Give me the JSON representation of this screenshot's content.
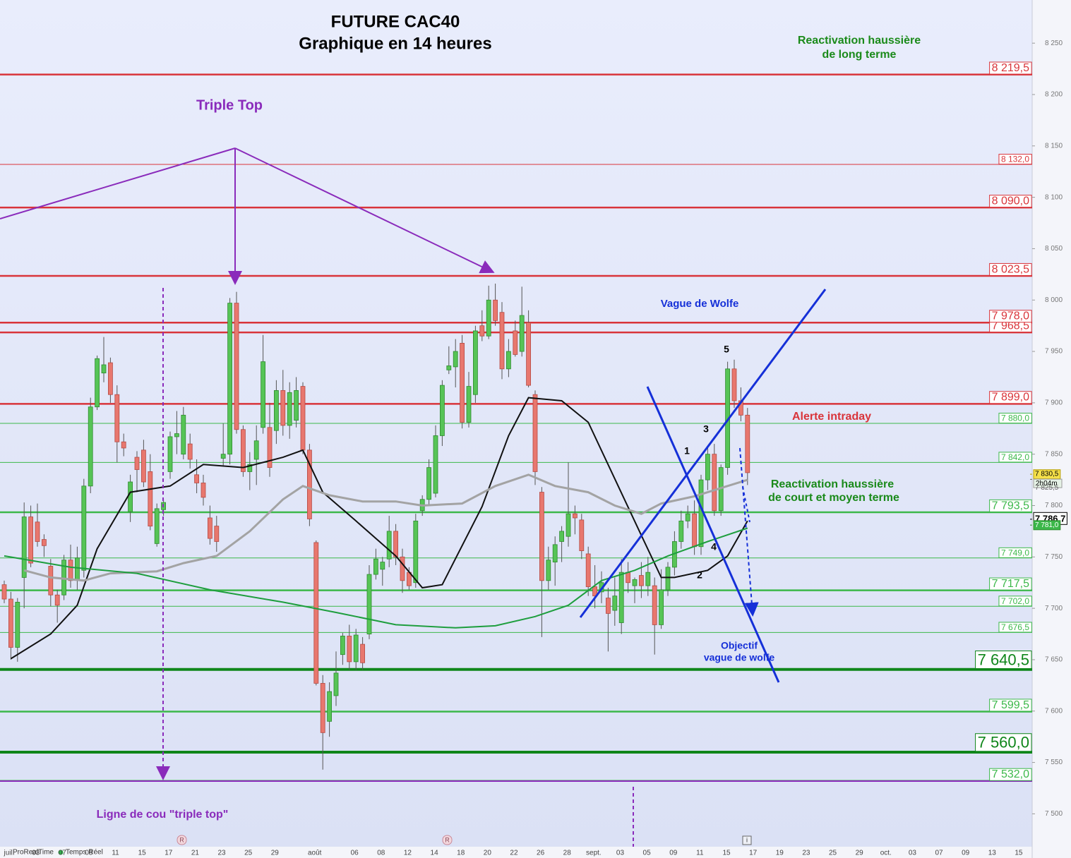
{
  "chart_data": {
    "type": "candlestick",
    "title": "FUTURE CAC40",
    "subtitle": "Graphique en 14 heures",
    "categories": [
      "juil.",
      "03",
      "07",
      "09",
      "11",
      "15",
      "17",
      "21",
      "23",
      "25",
      "29",
      "août",
      "06",
      "08",
      "12",
      "14",
      "18",
      "20",
      "22",
      "26",
      "28",
      "sept.",
      "03",
      "05",
      "09",
      "11",
      "15",
      "17",
      "19",
      "23",
      "25",
      "29",
      "oct.",
      "03",
      "07",
      "09",
      "13",
      "15"
    ],
    "ylim": [
      7468,
      8292
    ],
    "yticks": [
      {
        "value": 7500,
        "label": "7 500"
      },
      {
        "value": 7550,
        "label": "7 550"
      },
      {
        "value": 7600,
        "label": "7 600"
      },
      {
        "value": 7650,
        "label": "7 650"
      },
      {
        "value": 7700,
        "label": "7 700"
      },
      {
        "value": 7750,
        "label": "7 750"
      },
      {
        "value": 7800,
        "label": "7 800"
      },
      {
        "value": 7850,
        "label": "7 850"
      },
      {
        "value": 7900,
        "label": "7 900"
      },
      {
        "value": 7950,
        "label": "7 950"
      },
      {
        "value": 8000,
        "label": "8 000"
      },
      {
        "value": 8050,
        "label": "8 050"
      },
      {
        "value": 8100,
        "label": "8 100"
      },
      {
        "value": 8150,
        "label": "8 150"
      },
      {
        "value": 8200,
        "label": "8 200"
      },
      {
        "value": 8250,
        "label": "8 250"
      }
    ],
    "up_color": "#56c456",
    "down_color": "#e8776e",
    "candles": [
      [
        7723,
        7727,
        7705,
        7709
      ],
      [
        7709,
        7716,
        7650,
        7662
      ],
      [
        7662,
        7710,
        7648,
        7706
      ],
      [
        7730,
        7803,
        7700,
        7789
      ],
      [
        7789,
        7800,
        7740,
        7744
      ],
      [
        7784,
        7802,
        7760,
        7765
      ],
      [
        7767,
        7772,
        7750,
        7761
      ],
      [
        7741,
        7748,
        7702,
        7713
      ],
      [
        7713,
        7718,
        7686,
        7703
      ],
      [
        7713,
        7752,
        7708,
        7747
      ],
      [
        7747,
        7762,
        7720,
        7727
      ],
      [
        7728,
        7760,
        7718,
        7749
      ],
      [
        7737,
        7826,
        7730,
        7819
      ],
      [
        7819,
        7905,
        7812,
        7896
      ],
      [
        7896,
        7946,
        7893,
        7943
      ],
      [
        7929,
        7964,
        7920,
        7937
      ],
      [
        7939,
        7944,
        7900,
        7908
      ],
      [
        7908,
        7917,
        7842,
        7862
      ],
      [
        7862,
        7870,
        7848,
        7856
      ],
      [
        7794,
        7830,
        7784,
        7823
      ],
      [
        7847,
        7853,
        7813,
        7835
      ],
      [
        7854,
        7864,
        7818,
        7823
      ],
      [
        7833,
        7850,
        7776,
        7780
      ],
      [
        7763,
        7802,
        7760,
        7797
      ],
      [
        7796,
        7806,
        7790,
        7803
      ],
      [
        7833,
        7872,
        7826,
        7867
      ],
      [
        7867,
        7892,
        7850,
        7870
      ],
      [
        7850,
        7896,
        7845,
        7888
      ],
      [
        7860,
        7870,
        7836,
        7845
      ],
      [
        7830,
        7845,
        7812,
        7822
      ],
      [
        7822,
        7830,
        7800,
        7808
      ],
      [
        7788,
        7800,
        7762,
        7768
      ],
      [
        7780,
        7790,
        7755,
        7765
      ],
      [
        7846,
        7880,
        7838,
        7850
      ],
      [
        7850,
        8002,
        7840,
        7997
      ],
      [
        7997,
        8008,
        7870,
        7874
      ],
      [
        7874,
        7878,
        7828,
        7833
      ],
      [
        7833,
        7852,
        7815,
        7840
      ],
      [
        7845,
        7878,
        7820,
        7863
      ],
      [
        7876,
        7966,
        7870,
        7940
      ],
      [
        7876,
        7900,
        7828,
        7837
      ],
      [
        7873,
        7922,
        7860,
        7912
      ],
      [
        7912,
        7932,
        7868,
        7878
      ],
      [
        7878,
        7920,
        7865,
        7910
      ],
      [
        7883,
        7925,
        7876,
        7912
      ],
      [
        7916,
        7920,
        7850,
        7854
      ],
      [
        7854,
        7860,
        7780,
        7787
      ],
      [
        7764,
        7766,
        7625,
        7627
      ],
      [
        7627,
        7635,
        7543,
        7579
      ],
      [
        7590,
        7628,
        7575,
        7619
      ],
      [
        7615,
        7658,
        7605,
        7637
      ],
      [
        7655,
        7676,
        7645,
        7673
      ],
      [
        7673,
        7684,
        7640,
        7648
      ],
      [
        7648,
        7680,
        7640,
        7674
      ],
      [
        7665,
        7672,
        7640,
        7647
      ],
      [
        7675,
        7742,
        7670,
        7733
      ],
      [
        7733,
        7758,
        7728,
        7748
      ],
      [
        7738,
        7750,
        7722,
        7745
      ],
      [
        7748,
        7790,
        7740,
        7775
      ],
      [
        7775,
        7782,
        7742,
        7750
      ],
      [
        7750,
        7758,
        7715,
        7727
      ],
      [
        7735,
        7740,
        7718,
        7722
      ],
      [
        7725,
        7792,
        7720,
        7785
      ],
      [
        7795,
        7810,
        7790,
        7806
      ],
      [
        7806,
        7845,
        7800,
        7837
      ],
      [
        7812,
        7878,
        7808,
        7868
      ],
      [
        7868,
        7922,
        7858,
        7917
      ],
      [
        7932,
        7955,
        7928,
        7936
      ],
      [
        7935,
        7962,
        7915,
        7950
      ],
      [
        7958,
        7966,
        7875,
        7881
      ],
      [
        7881,
        7930,
        7876,
        7916
      ],
      [
        7908,
        7975,
        7900,
        7970
      ],
      [
        7975,
        7990,
        7960,
        7965
      ],
      [
        7965,
        8014,
        7962,
        8000
      ],
      [
        8000,
        8016,
        7975,
        7980
      ],
      [
        7988,
        7998,
        7923,
        7933
      ],
      [
        7933,
        7962,
        7925,
        7950
      ],
      [
        7970,
        7980,
        7945,
        7947
      ],
      [
        7950,
        8013,
        7945,
        7985
      ],
      [
        7978,
        7990,
        7915,
        7917
      ],
      [
        7908,
        7912,
        7820,
        7833
      ],
      [
        7813,
        7818,
        7672,
        7727
      ],
      [
        7727,
        7760,
        7718,
        7747
      ],
      [
        7745,
        7770,
        7722,
        7762
      ],
      [
        7765,
        7780,
        7745,
        7775
      ],
      [
        7770,
        7842,
        7760,
        7792
      ],
      [
        7792,
        7800,
        7772,
        7788
      ],
      [
        7786,
        7792,
        7748,
        7756
      ],
      [
        7753,
        7760,
        7712,
        7721
      ],
      [
        7721,
        7742,
        7700,
        7712
      ],
      [
        7716,
        7736,
        7705,
        7725
      ],
      [
        7710,
        7720,
        7658,
        7695
      ],
      [
        7698,
        7730,
        7683,
        7712
      ],
      [
        7686,
        7748,
        7675,
        7735
      ],
      [
        7735,
        7745,
        7715,
        7725
      ],
      [
        7722,
        7730,
        7705,
        7728
      ],
      [
        7732,
        7745,
        7710,
        7722
      ],
      [
        7722,
        7750,
        7712,
        7735
      ],
      [
        7722,
        7730,
        7655,
        7684
      ],
      [
        7684,
        7738,
        7680,
        7718
      ],
      [
        7718,
        7745,
        7712,
        7740
      ],
      [
        7740,
        7775,
        7732,
        7765
      ],
      [
        7765,
        7795,
        7758,
        7785
      ],
      [
        7785,
        7800,
        7778,
        7792
      ],
      [
        7792,
        7805,
        7752,
        7760
      ],
      [
        7760,
        7830,
        7752,
        7825
      ],
      [
        7825,
        7856,
        7815,
        7850
      ],
      [
        7850,
        7860,
        7790,
        7795
      ],
      [
        7795,
        7840,
        7790,
        7837
      ],
      [
        7837,
        7940,
        7830,
        7933
      ],
      [
        7933,
        7942,
        7895,
        7902
      ],
      [
        7902,
        7915,
        7882,
        7888
      ],
      [
        7888,
        7895,
        7820,
        7832
      ]
    ],
    "series": [
      {
        "color": "#111111",
        "x": [
          1,
          7,
          11,
          14,
          19,
          25,
          30,
          36,
          42,
          45,
          48,
          53,
          59,
          63,
          66,
          72,
          76,
          79,
          84,
          88,
          92,
          96,
          99,
          101,
          106,
          109,
          112
        ],
        "values": [
          7651,
          7675,
          7703,
          7758,
          7813,
          7819,
          7840,
          7837,
          7847,
          7854,
          7813,
          7785,
          7751,
          7720,
          7723,
          7799,
          7868,
          7905,
          7902,
          7881,
          7826,
          7771,
          7730,
          7730,
          7737,
          7751,
          7785
        ]
      },
      {
        "color": "#a3a3a3",
        "x": [
          3,
          7,
          12,
          16,
          23,
          27,
          32,
          37,
          42,
          45,
          49,
          54,
          59,
          63,
          69,
          74,
          79,
          83,
          88,
          92,
          96,
          99,
          104,
          108,
          112
        ],
        "values": [
          7737,
          7730,
          7727,
          7734,
          7736,
          7744,
          7751,
          7775,
          7806,
          7819,
          7810,
          7804,
          7804,
          7800,
          7802,
          7819,
          7830,
          7819,
          7813,
          7800,
          7792,
          7802,
          7809,
          7817,
          7825
        ]
      },
      {
        "color": "#1e9e3e",
        "x": [
          0,
          10,
          20,
          31,
          42,
          50,
          59,
          68,
          74,
          80,
          85,
          90,
          95,
          100,
          106,
          112
        ],
        "values": [
          7751,
          7740,
          7734,
          7718,
          7706,
          7696,
          7684,
          7681,
          7683,
          7692,
          7703,
          7727,
          7737,
          7751,
          7765,
          7778
        ]
      }
    ],
    "levels": [
      {
        "value": 8219.5,
        "label": "8 219,5",
        "color": "#d9343a",
        "weight": "bold"
      },
      {
        "value": 8132,
        "label": "8 132,0",
        "color": "#d9343a",
        "weight": "thin"
      },
      {
        "value": 8090,
        "label": "8 090,0",
        "color": "#d9343a",
        "weight": "bold"
      },
      {
        "value": 8023.5,
        "label": "8 023,5",
        "color": "#d9343a",
        "weight": "bold"
      },
      {
        "value": 7968.5,
        "label": "7 968,5",
        "color": "#d9343a",
        "weight": "bold"
      },
      {
        "value": 7978,
        "label": "7 978,0",
        "color": "#d9343a",
        "weight": "bold"
      },
      {
        "value": 7899,
        "label": "7 899,0",
        "color": "#d9343a",
        "weight": "bold"
      },
      {
        "value": 7880,
        "label": "7 880,0",
        "color": "#3cb84a",
        "weight": "thin"
      },
      {
        "value": 7842,
        "label": "7 842,0",
        "color": "#3cb84a",
        "weight": "thin"
      },
      {
        "value": 7793.5,
        "label": "7 793,5",
        "color": "#3cb84a",
        "weight": "bold"
      },
      {
        "value": 7749,
        "label": "7 749,0",
        "color": "#3cb84a",
        "weight": "thin"
      },
      {
        "value": 7717.5,
        "label": "7 717,5",
        "color": "#3cb84a",
        "weight": "bold"
      },
      {
        "value": 7702,
        "label": "7 702,0",
        "color": "#3cb84a",
        "weight": "thin"
      },
      {
        "value": 7676.5,
        "label": "7 676,5",
        "color": "#3cb84a",
        "weight": "thin"
      },
      {
        "value": 7640.5,
        "label": "7 640,5",
        "color": "#0f861a",
        "weight": "heavy"
      },
      {
        "value": 7599.5,
        "label": "7 599,5",
        "color": "#3cb84a",
        "weight": "bold"
      },
      {
        "value": 7560,
        "label": "7 560,0",
        "color": "#0f861a",
        "weight": "heavy"
      },
      {
        "value": 7532,
        "label": "7 532,0",
        "color": "#3cb84a",
        "weight": "bold"
      }
    ],
    "price_tags": [
      {
        "value": 7830.5,
        "label": "7 830,5",
        "style": "high"
      },
      {
        "value": 7825.5,
        "label": "7 825,5",
        "style": "plain"
      },
      {
        "value": 7786.7,
        "label": "7 786,7",
        "style": "last"
      },
      {
        "value": 7781,
        "label": "7 781,0",
        "style": "average"
      }
    ],
    "countdown": "2h04m",
    "annotations": {
      "triple_top": "Triple Top",
      "long_term": [
        "Reactivation haussière",
        "de long terme"
      ],
      "wolfe": "Vague de Wolfe",
      "intraday": "Alerte intraday",
      "short_term": [
        "Reactivation haussière",
        "de court et moyen terme"
      ],
      "target": [
        "Objectif",
        "vague de wolfe"
      ],
      "neckline": "Ligne de cou \"triple top\"",
      "waves": [
        "1",
        "2",
        "3",
        "4",
        "5"
      ]
    },
    "footer": {
      "brand": "ProRealTime",
      "feed": "Temps Réel",
      "markers": [
        "R",
        "R",
        "i"
      ]
    }
  }
}
